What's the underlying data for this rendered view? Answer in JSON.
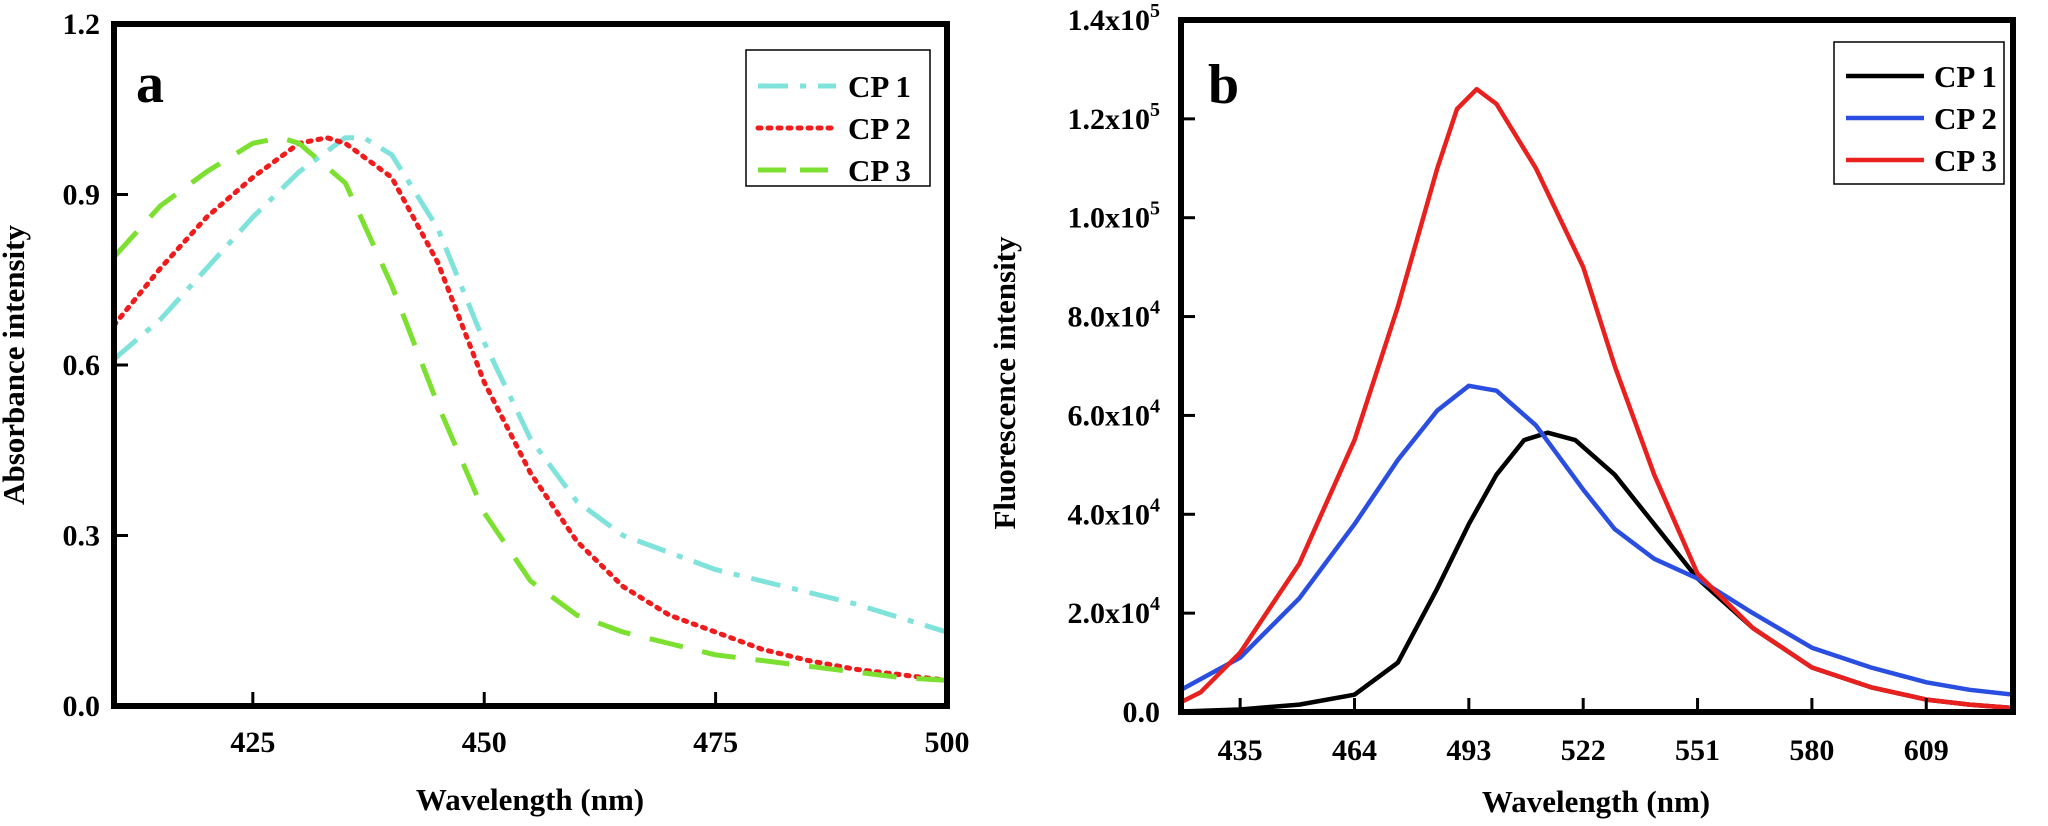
{
  "chart_data": [
    {
      "type": "line",
      "panel_label": "a",
      "xlabel": "Wavelength (nm)",
      "ylabel": "Absorbance intensity",
      "xlim": [
        410,
        500
      ],
      "ylim": [
        0,
        1.2
      ],
      "xticks": [
        425,
        450,
        475,
        500
      ],
      "yticks": [
        0.0,
        0.3,
        0.6,
        0.9,
        1.2
      ],
      "xtick_labels": [
        "425",
        "450",
        "475",
        "500"
      ],
      "ytick_labels": [
        "0.0",
        "0.3",
        "0.6",
        "0.9",
        "1.2"
      ],
      "grid": false,
      "legend": "top-right",
      "series": [
        {
          "name": "CP 1",
          "color": "#7fe3dc",
          "style": "dashdot",
          "x": [
            410,
            415,
            420,
            425,
            430,
            435,
            437,
            440,
            445,
            450,
            455,
            460,
            465,
            470,
            475,
            480,
            485,
            490,
            495,
            500
          ],
          "y": [
            0.61,
            0.68,
            0.77,
            0.86,
            0.94,
            1.0,
            1.0,
            0.97,
            0.84,
            0.64,
            0.47,
            0.36,
            0.3,
            0.27,
            0.24,
            0.22,
            0.2,
            0.18,
            0.155,
            0.13
          ]
        },
        {
          "name": "CP 2",
          "color": "#ee1c1c",
          "style": "dotted",
          "x": [
            410,
            415,
            420,
            425,
            430,
            433,
            435,
            440,
            445,
            450,
            455,
            460,
            465,
            470,
            475,
            480,
            485,
            490,
            495,
            500
          ],
          "y": [
            0.67,
            0.77,
            0.86,
            0.93,
            0.99,
            1.0,
            0.99,
            0.93,
            0.78,
            0.57,
            0.41,
            0.29,
            0.21,
            0.16,
            0.13,
            0.1,
            0.08,
            0.065,
            0.055,
            0.045
          ]
        },
        {
          "name": "CP 3",
          "color": "#7be030",
          "style": "dashed",
          "x": [
            410,
            415,
            420,
            425,
            428,
            430,
            435,
            440,
            445,
            450,
            455,
            460,
            465,
            470,
            475,
            480,
            485,
            490,
            495,
            500
          ],
          "y": [
            0.79,
            0.88,
            0.94,
            0.99,
            1.0,
            0.99,
            0.92,
            0.74,
            0.53,
            0.34,
            0.22,
            0.16,
            0.13,
            0.11,
            0.09,
            0.08,
            0.07,
            0.06,
            0.05,
            0.045
          ]
        }
      ]
    },
    {
      "type": "line",
      "panel_label": "b",
      "xlabel": "Wavelength (nm)",
      "ylabel": "Fluorescence intensity",
      "xlim": [
        420,
        631
      ],
      "ylim": [
        0,
        140000
      ],
      "xticks": [
        435,
        464,
        493,
        522,
        551,
        580,
        609
      ],
      "yticks": [
        0,
        20000,
        40000,
        60000,
        80000,
        100000,
        120000,
        140000
      ],
      "xtick_labels": [
        "435",
        "464",
        "493",
        "522",
        "551",
        "580",
        "609"
      ],
      "ytick_labels": [
        {
          "base": "0.0",
          "exp": ""
        },
        {
          "base": "2.0x10",
          "exp": "4"
        },
        {
          "base": "4.0x10",
          "exp": "4"
        },
        {
          "base": "6.0x10",
          "exp": "4"
        },
        {
          "base": "8.0x10",
          "exp": "4"
        },
        {
          "base": "1.0x10",
          "exp": "5"
        },
        {
          "base": "1.2x10",
          "exp": "5"
        },
        {
          "base": "1.4x10",
          "exp": "5"
        }
      ],
      "grid": false,
      "legend": "top-right",
      "series": [
        {
          "name": "CP 1",
          "color": "#000000",
          "style": "solid",
          "x": [
            420,
            435,
            450,
            464,
            475,
            485,
            493,
            500,
            507,
            513,
            520,
            530,
            540,
            551,
            565,
            580,
            595,
            609,
            620,
            631
          ],
          "y": [
            100,
            500,
            1500,
            3500,
            10000,
            25000,
            38000,
            48000,
            55000,
            56500,
            55000,
            48000,
            38000,
            27000,
            17000,
            9000,
            5000,
            2500,
            1500,
            800
          ]
        },
        {
          "name": "CP 2",
          "color": "#2a4fe0",
          "style": "solid",
          "x": [
            420,
            435,
            450,
            464,
            475,
            485,
            493,
            500,
            510,
            522,
            530,
            540,
            551,
            565,
            580,
            595,
            609,
            620,
            631
          ],
          "y": [
            4500,
            11000,
            23000,
            38000,
            51000,
            61000,
            66000,
            65000,
            58000,
            45000,
            37000,
            31000,
            27000,
            20000,
            13000,
            9000,
            6000,
            4500,
            3500
          ]
        },
        {
          "name": "CP 3",
          "color": "#e8201e",
          "style": "solid",
          "x": [
            420,
            425,
            435,
            450,
            464,
            475,
            485,
            490,
            495,
            500,
            510,
            522,
            530,
            540,
            551,
            565,
            580,
            595,
            609,
            620,
            631
          ],
          "y": [
            2000,
            4000,
            12000,
            30000,
            55000,
            82000,
            110000,
            122000,
            126000,
            123000,
            110000,
            90000,
            70000,
            48000,
            28000,
            17000,
            9000,
            5000,
            2500,
            1500,
            800
          ]
        }
      ]
    }
  ]
}
